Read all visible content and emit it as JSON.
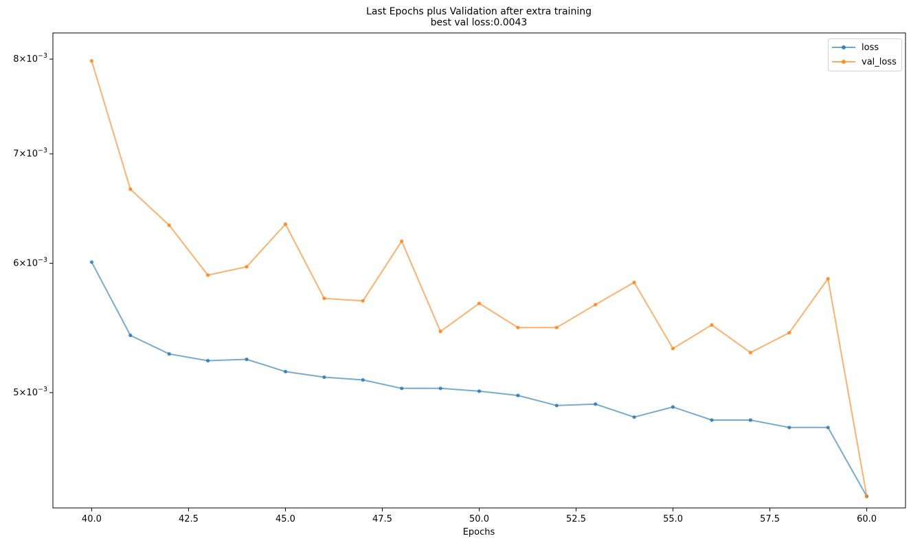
{
  "chart_data": {
    "type": "line",
    "title": "Last Epochs plus Validation after extra training",
    "subtitle": "best val loss:0.0043",
    "xlabel": "Epochs",
    "ylabel": "",
    "yscale": "log",
    "x": [
      40,
      41,
      42,
      43,
      44,
      45,
      46,
      47,
      48,
      49,
      50,
      51,
      52,
      53,
      54,
      55,
      56,
      57,
      58,
      59,
      60
    ],
    "xlim": [
      39.0,
      61.0
    ],
    "ylim": [
      0.00425,
      0.0083
    ],
    "xticks": [
      40.0,
      42.5,
      45.0,
      47.5,
      50.0,
      52.5,
      55.0,
      57.5,
      60.0
    ],
    "xtick_labels": [
      "40.0",
      "42.5",
      "45.0",
      "47.5",
      "50.0",
      "52.5",
      "55.0",
      "57.5",
      "60.0"
    ],
    "yticks": [
      0.005,
      0.006,
      0.007,
      0.008
    ],
    "ytick_labels": [
      {
        "mantissa": "5",
        "exp": "−3"
      },
      {
        "mantissa": "6",
        "exp": "−3"
      },
      {
        "mantissa": "7",
        "exp": "−3"
      },
      {
        "mantissa": "8",
        "exp": "−3"
      }
    ],
    "grid": false,
    "legend_position": "top-right",
    "series": [
      {
        "name": "loss",
        "color": "#1f77b4",
        "values": [
          0.00601,
          0.00542,
          0.00528,
          0.00523,
          0.00524,
          0.00515,
          0.00511,
          0.00509,
          0.00503,
          0.00503,
          0.00501,
          0.00498,
          0.00491,
          0.00492,
          0.00483,
          0.0049,
          0.00481,
          0.00481,
          0.00476,
          0.00476,
          0.00432
        ]
      },
      {
        "name": "val_loss",
        "color": "#ff7f0e",
        "values": [
          0.00798,
          0.00666,
          0.00633,
          0.0059,
          0.00597,
          0.00634,
          0.00571,
          0.00569,
          0.00619,
          0.00545,
          0.00567,
          0.00548,
          0.00548,
          0.00566,
          0.00584,
          0.00532,
          0.0055,
          0.00529,
          0.00544,
          0.00587,
          0.00432
        ]
      }
    ]
  }
}
